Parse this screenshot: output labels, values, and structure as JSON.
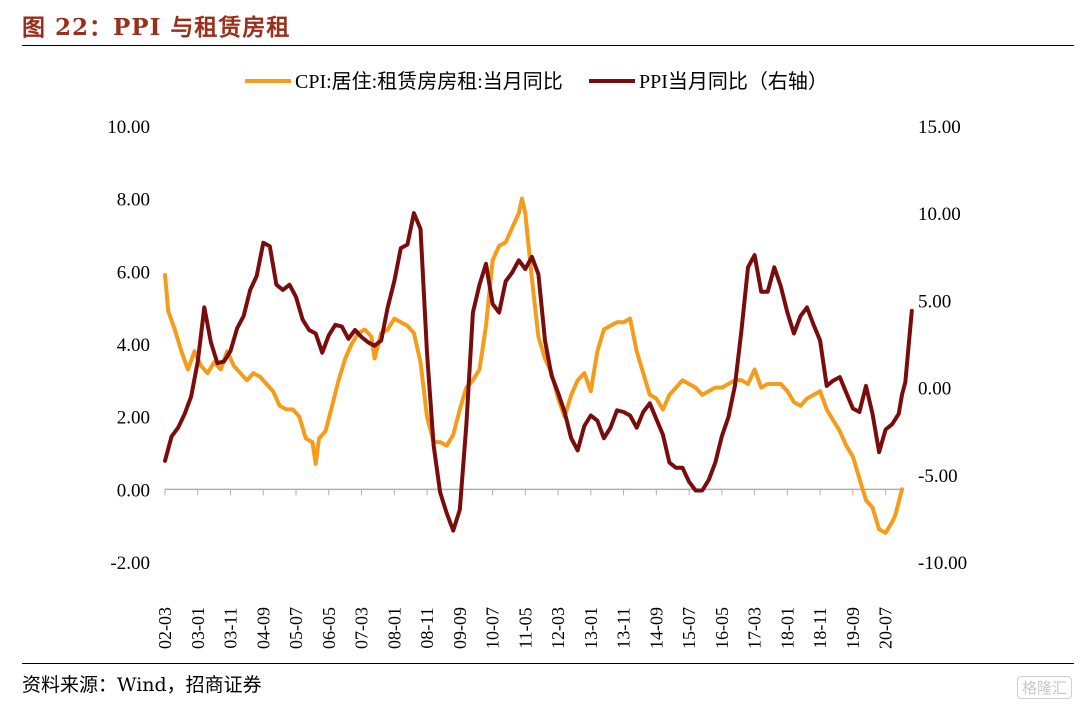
{
  "title": "图 22：PPI 与租赁房租",
  "source": "资料来源：Wind，招商证券",
  "watermark": "格隆汇",
  "colors": {
    "cpi_rent": "#f59c1a",
    "ppi": "#7a0c0c",
    "title": "#9b2e1a"
  },
  "chart_data": {
    "type": "line",
    "x_tick_labels": [
      "02-03",
      "03-01",
      "03-11",
      "04-09",
      "05-07",
      "06-05",
      "07-03",
      "08-01",
      "08-11",
      "09-09",
      "10-07",
      "11-05",
      "12-03",
      "13-01",
      "13-11",
      "14-09",
      "15-07",
      "16-05",
      "17-03",
      "18-01",
      "18-11",
      "19-09",
      "20-07"
    ],
    "x_range": [
      "2002-03",
      "2020-12"
    ],
    "y_left": {
      "range": [
        -2,
        10
      ],
      "ticks": [
        "-2.00",
        "0.00",
        "2.00",
        "4.00",
        "6.00",
        "8.00",
        "10.00"
      ]
    },
    "y_right": {
      "range": [
        -10,
        15
      ],
      "ticks": [
        "-10.00",
        "-5.00",
        "0.00",
        "5.00",
        "10.00",
        "15.00"
      ]
    },
    "legend_position": "top-center",
    "series": [
      {
        "name": "CPI:居住:租赁房房租:当月同比",
        "axis": "left",
        "color": "#f59c1a",
        "points": [
          [
            "2002-03",
            5.9
          ],
          [
            "2002-04",
            4.9
          ],
          [
            "2002-06",
            4.4
          ],
          [
            "2002-08",
            3.8
          ],
          [
            "2002-10",
            3.3
          ],
          [
            "2002-12",
            3.8
          ],
          [
            "2003-02",
            3.4
          ],
          [
            "2003-04",
            3.2
          ],
          [
            "2003-06",
            3.5
          ],
          [
            "2003-08",
            3.3
          ],
          [
            "2003-10",
            3.8
          ],
          [
            "2003-12",
            3.4
          ],
          [
            "2004-02",
            3.2
          ],
          [
            "2004-04",
            3.0
          ],
          [
            "2004-06",
            3.2
          ],
          [
            "2004-08",
            3.1
          ],
          [
            "2004-10",
            2.9
          ],
          [
            "2004-12",
            2.7
          ],
          [
            "2005-02",
            2.3
          ],
          [
            "2005-04",
            2.2
          ],
          [
            "2005-06",
            2.2
          ],
          [
            "2005-08",
            2.0
          ],
          [
            "2005-10",
            1.4
          ],
          [
            "2005-12",
            1.3
          ],
          [
            "2006-01",
            0.7
          ],
          [
            "2006-02",
            1.4
          ],
          [
            "2006-04",
            1.6
          ],
          [
            "2006-06",
            2.3
          ],
          [
            "2006-08",
            3.0
          ],
          [
            "2006-10",
            3.6
          ],
          [
            "2006-12",
            4.0
          ],
          [
            "2007-02",
            4.3
          ],
          [
            "2007-04",
            4.4
          ],
          [
            "2007-06",
            4.2
          ],
          [
            "2007-07",
            3.6
          ],
          [
            "2007-09",
            4.3
          ],
          [
            "2007-11",
            4.4
          ],
          [
            "2008-01",
            4.7
          ],
          [
            "2008-03",
            4.6
          ],
          [
            "2008-05",
            4.5
          ],
          [
            "2008-07",
            4.3
          ],
          [
            "2008-09",
            3.5
          ],
          [
            "2008-11",
            2.0
          ],
          [
            "2009-01",
            1.3
          ],
          [
            "2009-03",
            1.3
          ],
          [
            "2009-05",
            1.2
          ],
          [
            "2009-07",
            1.5
          ],
          [
            "2009-09",
            2.2
          ],
          [
            "2009-11",
            2.8
          ],
          [
            "2010-01",
            3.0
          ],
          [
            "2010-03",
            3.3
          ],
          [
            "2010-05",
            4.5
          ],
          [
            "2010-07",
            6.3
          ],
          [
            "2010-09",
            6.7
          ],
          [
            "2010-11",
            6.8
          ],
          [
            "2011-01",
            7.2
          ],
          [
            "2011-03",
            7.6
          ],
          [
            "2011-04",
            8.0
          ],
          [
            "2011-05",
            7.6
          ],
          [
            "2011-07",
            5.8
          ],
          [
            "2011-09",
            4.2
          ],
          [
            "2011-11",
            3.6
          ],
          [
            "2012-01",
            3.2
          ],
          [
            "2012-03",
            2.5
          ],
          [
            "2012-05",
            2.0
          ],
          [
            "2012-07",
            2.6
          ],
          [
            "2012-09",
            3.0
          ],
          [
            "2012-11",
            3.2
          ],
          [
            "2013-01",
            2.7
          ],
          [
            "2013-03",
            3.8
          ],
          [
            "2013-05",
            4.4
          ],
          [
            "2013-07",
            4.5
          ],
          [
            "2013-09",
            4.6
          ],
          [
            "2013-11",
            4.6
          ],
          [
            "2014-01",
            4.7
          ],
          [
            "2014-03",
            3.8
          ],
          [
            "2014-05",
            3.2
          ],
          [
            "2014-07",
            2.6
          ],
          [
            "2014-09",
            2.5
          ],
          [
            "2014-11",
            2.2
          ],
          [
            "2015-01",
            2.6
          ],
          [
            "2015-03",
            2.8
          ],
          [
            "2015-05",
            3.0
          ],
          [
            "2015-07",
            2.9
          ],
          [
            "2015-09",
            2.8
          ],
          [
            "2015-11",
            2.6
          ],
          [
            "2016-01",
            2.7
          ],
          [
            "2016-03",
            2.8
          ],
          [
            "2016-05",
            2.8
          ],
          [
            "2016-07",
            2.9
          ],
          [
            "2016-09",
            3.0
          ],
          [
            "2016-11",
            3.0
          ],
          [
            "2017-01",
            2.9
          ],
          [
            "2017-03",
            3.3
          ],
          [
            "2017-05",
            2.8
          ],
          [
            "2017-07",
            2.9
          ],
          [
            "2017-09",
            2.9
          ],
          [
            "2017-11",
            2.9
          ],
          [
            "2018-01",
            2.7
          ],
          [
            "2018-03",
            2.4
          ],
          [
            "2018-05",
            2.3
          ],
          [
            "2018-07",
            2.5
          ],
          [
            "2018-09",
            2.6
          ],
          [
            "2018-11",
            2.7
          ],
          [
            "2019-01",
            2.2
          ],
          [
            "2019-03",
            1.9
          ],
          [
            "2019-05",
            1.6
          ],
          [
            "2019-07",
            1.2
          ],
          [
            "2019-09",
            0.9
          ],
          [
            "2019-11",
            0.3
          ],
          [
            "2020-01",
            -0.3
          ],
          [
            "2020-03",
            -0.5
          ],
          [
            "2020-05",
            -1.1
          ],
          [
            "2020-07",
            -1.2
          ],
          [
            "2020-09",
            -0.9
          ],
          [
            "2020-10",
            -0.7
          ],
          [
            "2020-12",
            0.0
          ]
        ]
      },
      {
        "name": "PPI当月同比（右轴）",
        "axis": "right",
        "color": "#7a0c0c",
        "points": [
          [
            "2002-03",
            -4.2
          ],
          [
            "2002-05",
            -2.8
          ],
          [
            "2002-07",
            -2.3
          ],
          [
            "2002-09",
            -1.5
          ],
          [
            "2002-11",
            -0.5
          ],
          [
            "2003-01",
            1.5
          ],
          [
            "2003-03",
            4.6
          ],
          [
            "2003-05",
            2.6
          ],
          [
            "2003-07",
            1.4
          ],
          [
            "2003-09",
            1.5
          ],
          [
            "2003-11",
            2.1
          ],
          [
            "2004-01",
            3.4
          ],
          [
            "2004-03",
            4.1
          ],
          [
            "2004-05",
            5.6
          ],
          [
            "2004-07",
            6.4
          ],
          [
            "2004-09",
            8.3
          ],
          [
            "2004-11",
            8.1
          ],
          [
            "2005-01",
            5.9
          ],
          [
            "2005-03",
            5.6
          ],
          [
            "2005-05",
            5.9
          ],
          [
            "2005-07",
            5.2
          ],
          [
            "2005-09",
            3.9
          ],
          [
            "2005-11",
            3.3
          ],
          [
            "2006-01",
            3.1
          ],
          [
            "2006-03",
            2.0
          ],
          [
            "2006-05",
            3.0
          ],
          [
            "2006-07",
            3.6
          ],
          [
            "2006-09",
            3.5
          ],
          [
            "2006-11",
            2.8
          ],
          [
            "2007-01",
            3.3
          ],
          [
            "2007-03",
            2.9
          ],
          [
            "2007-05",
            2.6
          ],
          [
            "2007-07",
            2.4
          ],
          [
            "2007-09",
            2.7
          ],
          [
            "2007-11",
            4.6
          ],
          [
            "2008-01",
            6.1
          ],
          [
            "2008-03",
            8.0
          ],
          [
            "2008-05",
            8.2
          ],
          [
            "2008-07",
            10.0
          ],
          [
            "2008-09",
            9.1
          ],
          [
            "2008-11",
            2.0
          ],
          [
            "2009-01",
            -3.3
          ],
          [
            "2009-03",
            -6.0
          ],
          [
            "2009-05",
            -7.2
          ],
          [
            "2009-07",
            -8.2
          ],
          [
            "2009-09",
            -7.0
          ],
          [
            "2009-11",
            -2.1
          ],
          [
            "2010-01",
            4.3
          ],
          [
            "2010-03",
            5.9
          ],
          [
            "2010-05",
            7.1
          ],
          [
            "2010-07",
            4.8
          ],
          [
            "2010-09",
            4.3
          ],
          [
            "2010-11",
            6.1
          ],
          [
            "2011-01",
            6.6
          ],
          [
            "2011-03",
            7.3
          ],
          [
            "2011-05",
            6.8
          ],
          [
            "2011-07",
            7.5
          ],
          [
            "2011-09",
            6.5
          ],
          [
            "2011-11",
            2.7
          ],
          [
            "2012-01",
            0.7
          ],
          [
            "2012-03",
            -0.3
          ],
          [
            "2012-05",
            -1.4
          ],
          [
            "2012-07",
            -2.9
          ],
          [
            "2012-09",
            -3.6
          ],
          [
            "2012-11",
            -2.2
          ],
          [
            "2013-01",
            -1.6
          ],
          [
            "2013-03",
            -1.9
          ],
          [
            "2013-05",
            -2.9
          ],
          [
            "2013-07",
            -2.3
          ],
          [
            "2013-09",
            -1.3
          ],
          [
            "2013-11",
            -1.4
          ],
          [
            "2014-01",
            -1.6
          ],
          [
            "2014-03",
            -2.3
          ],
          [
            "2014-05",
            -1.4
          ],
          [
            "2014-07",
            -0.9
          ],
          [
            "2014-09",
            -1.8
          ],
          [
            "2014-11",
            -2.7
          ],
          [
            "2015-01",
            -4.3
          ],
          [
            "2015-03",
            -4.6
          ],
          [
            "2015-05",
            -4.6
          ],
          [
            "2015-07",
            -5.4
          ],
          [
            "2015-09",
            -5.9
          ],
          [
            "2015-11",
            -5.9
          ],
          [
            "2016-01",
            -5.3
          ],
          [
            "2016-03",
            -4.3
          ],
          [
            "2016-05",
            -2.8
          ],
          [
            "2016-07",
            -1.7
          ],
          [
            "2016-09",
            0.1
          ],
          [
            "2016-11",
            3.3
          ],
          [
            "2017-01",
            6.9
          ],
          [
            "2017-03",
            7.6
          ],
          [
            "2017-05",
            5.5
          ],
          [
            "2017-07",
            5.5
          ],
          [
            "2017-09",
            6.9
          ],
          [
            "2017-11",
            5.8
          ],
          [
            "2018-01",
            4.3
          ],
          [
            "2018-03",
            3.1
          ],
          [
            "2018-05",
            4.1
          ],
          [
            "2018-07",
            4.6
          ],
          [
            "2018-09",
            3.6
          ],
          [
            "2018-11",
            2.7
          ],
          [
            "2019-01",
            0.1
          ],
          [
            "2019-03",
            0.4
          ],
          [
            "2019-05",
            0.6
          ],
          [
            "2019-07",
            -0.3
          ],
          [
            "2019-09",
            -1.2
          ],
          [
            "2019-11",
            -1.4
          ],
          [
            "2020-01",
            0.1
          ],
          [
            "2020-03",
            -1.5
          ],
          [
            "2020-05",
            -3.7
          ],
          [
            "2020-07",
            -2.4
          ],
          [
            "2020-09",
            -2.1
          ],
          [
            "2020-11",
            -1.5
          ],
          [
            "2020-12",
            -0.4
          ],
          [
            "2021-01",
            0.3
          ],
          [
            "2021-03",
            4.4
          ]
        ]
      }
    ]
  }
}
